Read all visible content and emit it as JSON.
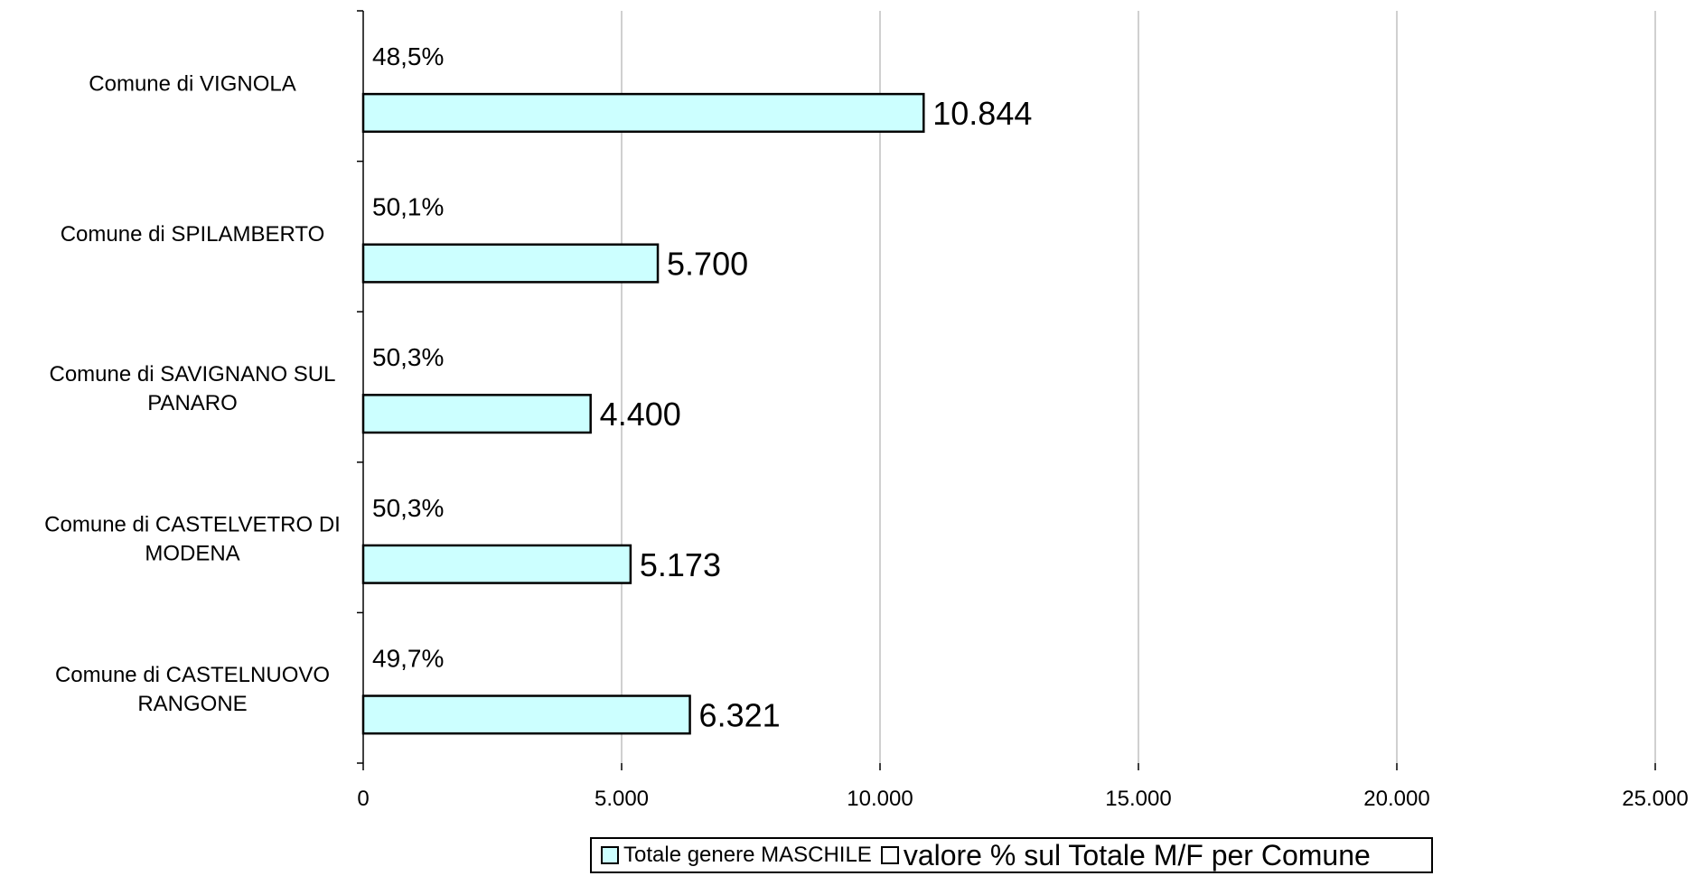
{
  "chart_data": {
    "type": "bar",
    "orientation": "horizontal",
    "categories": [
      "Comune di VIGNOLA",
      "Comune di SPILAMBERTO",
      "Comune di SAVIGNANO SUL PANARO",
      "Comune di CASTELVETRO DI MODENA",
      "Comune di CASTELNUOVO RANGONE"
    ],
    "category_lines": [
      [
        "Comune di VIGNOLA"
      ],
      [
        "Comune di SPILAMBERTO"
      ],
      [
        "Comune di SAVIGNANO SUL",
        "PANARO"
      ],
      [
        "Comune di CASTELVETRO DI",
        "MODENA"
      ],
      [
        "Comune di CASTELNUOVO",
        "RANGONE"
      ]
    ],
    "series": [
      {
        "name": "Totale genere MASCHILE",
        "values": [
          10844,
          5700,
          4400,
          5173,
          6321
        ],
        "value_labels": [
          "10.844",
          "5.700",
          "4.400",
          "5.173",
          "6.321"
        ],
        "color": "#ccffff"
      },
      {
        "name": "valore % sul Totale M/F per Comune",
        "values": [
          48.5,
          50.1,
          50.3,
          50.3,
          49.7
        ],
        "value_labels": [
          "48,5%",
          "50,1%",
          "50,3%",
          "50,3%",
          "49,7%"
        ],
        "color": "#ffffff"
      }
    ],
    "xlim": [
      0,
      25000
    ],
    "xticks": [
      0,
      5000,
      10000,
      15000,
      20000,
      25000
    ],
    "xtick_labels": [
      "0",
      "5.000",
      "10.000",
      "15.000",
      "20.000",
      "25.000"
    ],
    "grid": true,
    "legend_position": "bottom",
    "xlabel": "",
    "ylabel": "",
    "title": ""
  }
}
